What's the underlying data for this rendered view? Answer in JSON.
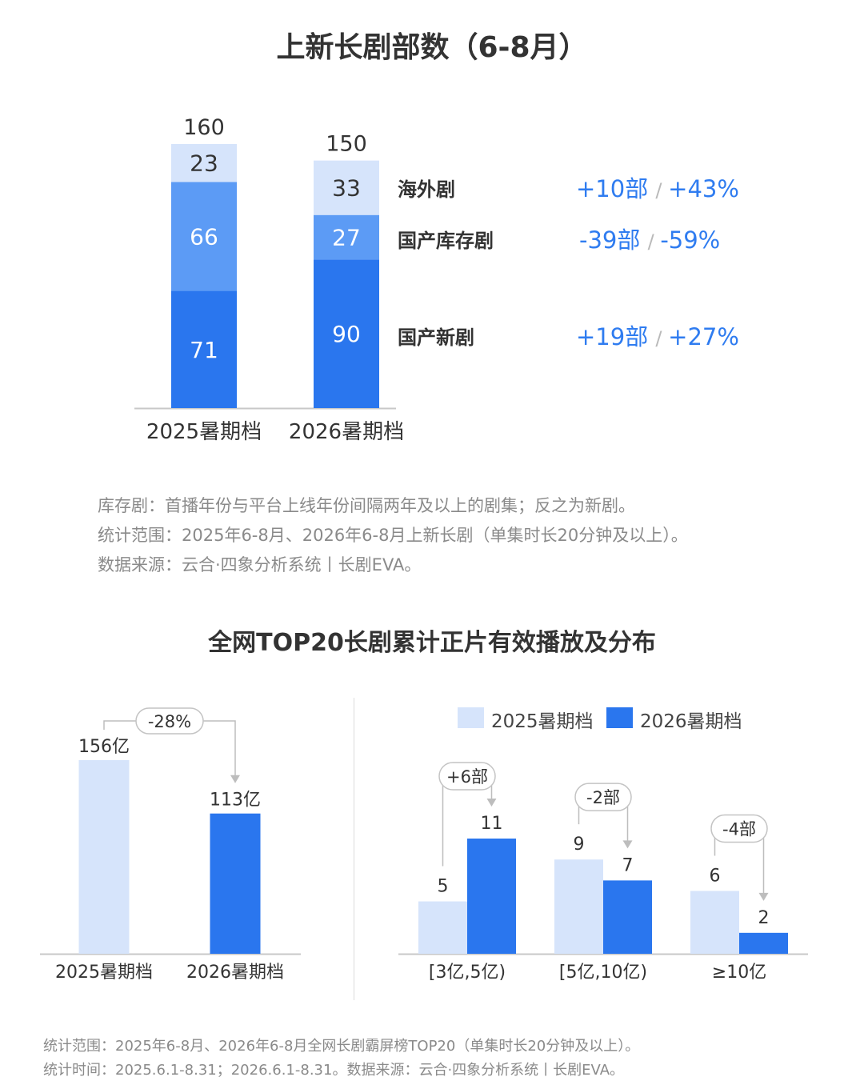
{
  "section1": {
    "title": "上新长剧部数（6-8月）",
    "notes": [
      "库存剧：首播年份与平台上线年份间隔两年及以上的剧集；反之为新剧。",
      "统计范围：2025年6-8月、2026年6-8月上新长剧（单集时长20分钟及以上）。",
      "数据来源：云合·四象分析系统丨长剧EVA。"
    ]
  },
  "section2": {
    "title": "全网TOP20长剧累计正片有效播放及分布",
    "legend": [
      "2025暑期档",
      "2026暑期档"
    ],
    "left_change": "-28%",
    "bucket_changes": [
      "+6部",
      "-2部",
      "-4部"
    ],
    "notes": [
      "统计范围：2025年6-8月、2026年6-8月全网长剧霸屏榜TOP20（单集时长20分钟及以上）。",
      "统计时间：2025.6.1-8.31；2026.6.1-8.31。数据来源：云合·四象分析系统丨长剧EVA。"
    ]
  },
  "colors": {
    "light": "#d6e4fb",
    "mid": "#5c9bf5",
    "dark": "#2a76ee",
    "accent_text": "#2f7cf0",
    "axis": "#c8c8c8"
  },
  "chart_data": [
    {
      "type": "bar",
      "stacked": true,
      "title": "上新长剧部数（6-8月）",
      "categories": [
        "2025暑期档",
        "2026暑期档"
      ],
      "totals": [
        160,
        150
      ],
      "series": [
        {
          "name": "国产新剧",
          "values": [
            71,
            90
          ],
          "change": "+19部",
          "change_pct": "+27%",
          "color": "#2a76ee"
        },
        {
          "name": "国产库存剧",
          "values": [
            66,
            27
          ],
          "change": "-39部",
          "change_pct": "-59%",
          "color": "#5c9bf5"
        },
        {
          "name": "海外剧",
          "values": [
            23,
            33
          ],
          "change": "+10部",
          "change_pct": "+43%",
          "color": "#d6e4fb"
        }
      ],
      "ylim": [
        0,
        160
      ],
      "legend_position": "right"
    },
    {
      "type": "bar",
      "categories": [
        "2025暑期档",
        "2026暑期档"
      ],
      "values": [
        156,
        113
      ],
      "value_labels": [
        "156亿",
        "113亿"
      ],
      "ylim": [
        0,
        156
      ],
      "change": "-28%",
      "colors": [
        "#d6e4fb",
        "#2a76ee"
      ]
    },
    {
      "type": "bar",
      "categories": [
        "[3亿,5亿)",
        "[5亿,10亿)",
        "≥10亿"
      ],
      "series": [
        {
          "name": "2025暑期档",
          "values": [
            5,
            9,
            6
          ],
          "color": "#d6e4fb"
        },
        {
          "name": "2026暑期档",
          "values": [
            11,
            7,
            2
          ],
          "color": "#2a76ee"
        }
      ],
      "changes": [
        "+6部",
        "-2部",
        "-4部"
      ],
      "ylim": [
        0,
        11
      ],
      "legend_position": "top"
    }
  ]
}
